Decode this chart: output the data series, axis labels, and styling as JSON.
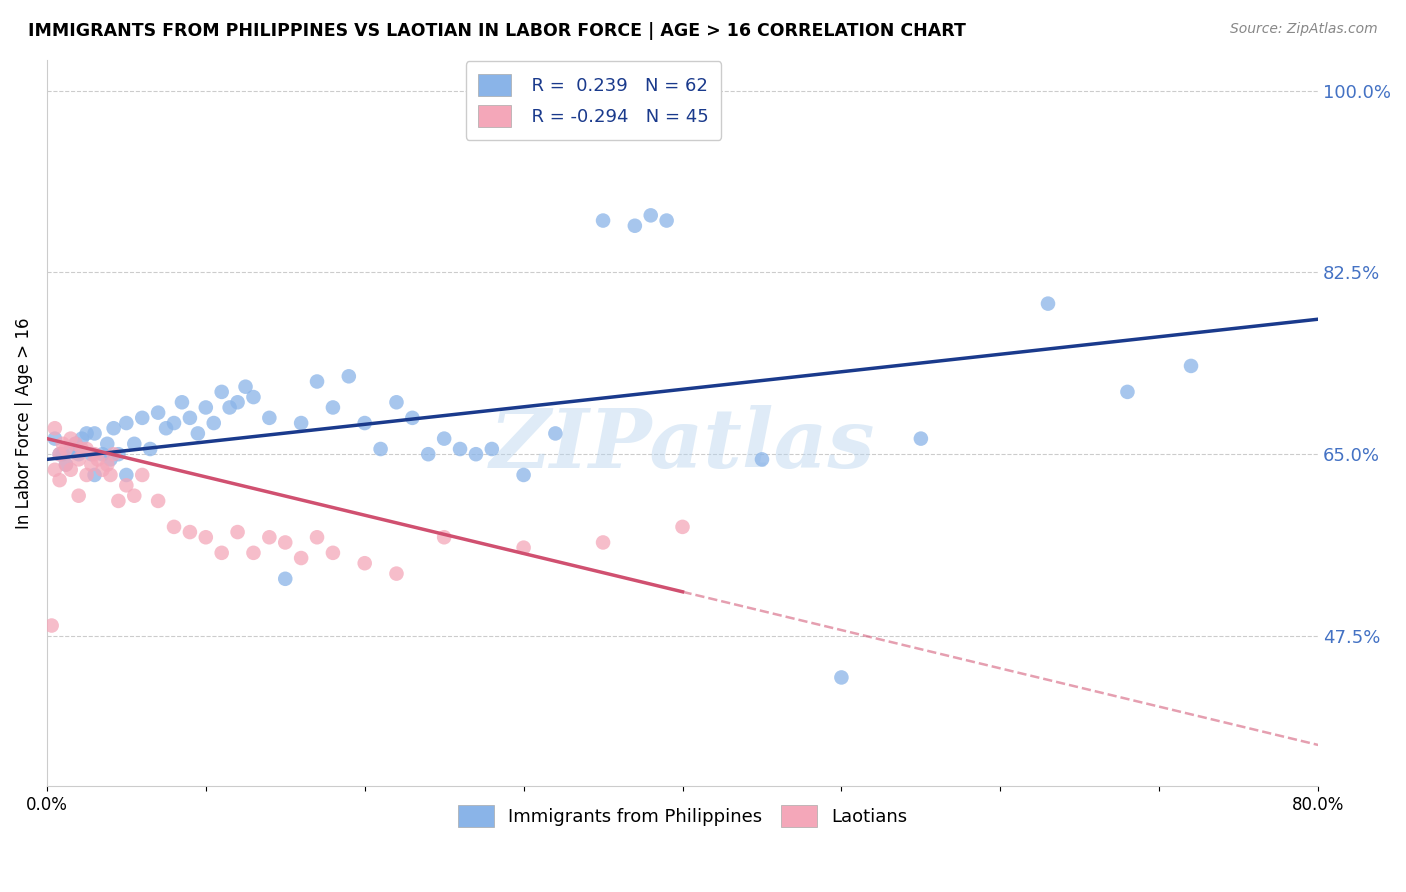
{
  "title": "IMMIGRANTS FROM PHILIPPINES VS LAOTIAN IN LABOR FORCE | AGE > 16 CORRELATION CHART",
  "source": "Source: ZipAtlas.com",
  "ylabel": "In Labor Force | Age > 16",
  "yticks": [
    100.0,
    82.5,
    65.0,
    47.5
  ],
  "ytick_labels": [
    "100.0%",
    "82.5%",
    "65.0%",
    "47.5%"
  ],
  "xlim": [
    0.0,
    80.0
  ],
  "ylim": [
    33.0,
    103.0
  ],
  "legend_blue_r": "R =  0.239",
  "legend_blue_n": "N = 62",
  "legend_pink_r": "R = -0.294",
  "legend_pink_n": "N = 45",
  "legend_label_blue": "Immigrants from Philippines",
  "legend_label_pink": "Laotians",
  "blue_color": "#8ab4e8",
  "pink_color": "#f4a7b9",
  "blue_line_color": "#1a3a8c",
  "pink_line_color": "#e07090",
  "pink_line_solid_color": "#d05070",
  "watermark": "ZIPatlas",
  "blue_line_start_y": 64.5,
  "blue_line_end_y": 78.0,
  "pink_line_start_y": 66.5,
  "pink_line_end_y": 37.0,
  "pink_solid_end_x": 40.0,
  "blue_scatter_x": [
    0.5,
    0.8,
    1.0,
    1.2,
    1.5,
    1.8,
    2.0,
    2.2,
    2.5,
    2.8,
    3.0,
    3.0,
    3.5,
    3.8,
    4.0,
    4.2,
    4.5,
    5.0,
    5.0,
    5.5,
    6.0,
    6.5,
    7.0,
    7.5,
    8.0,
    8.5,
    9.0,
    9.5,
    10.0,
    10.5,
    11.0,
    11.5,
    12.0,
    12.5,
    13.0,
    14.0,
    15.0,
    16.0,
    17.0,
    18.0,
    19.0,
    20.0,
    21.0,
    22.0,
    23.0,
    24.0,
    25.0,
    26.0,
    27.0,
    28.0,
    30.0,
    32.0,
    35.0,
    37.0,
    38.0,
    39.0,
    45.0,
    50.0,
    55.0,
    63.0,
    68.0,
    72.0
  ],
  "blue_scatter_y": [
    66.5,
    65.0,
    65.0,
    64.0,
    65.5,
    66.0,
    65.0,
    66.5,
    67.0,
    65.0,
    63.0,
    67.0,
    65.0,
    66.0,
    64.5,
    67.5,
    65.0,
    63.0,
    68.0,
    66.0,
    68.5,
    65.5,
    69.0,
    67.5,
    68.0,
    70.0,
    68.5,
    67.0,
    69.5,
    68.0,
    71.0,
    69.5,
    70.0,
    71.5,
    70.5,
    68.5,
    53.0,
    68.0,
    72.0,
    69.5,
    72.5,
    68.0,
    65.5,
    70.0,
    68.5,
    65.0,
    66.5,
    65.5,
    65.0,
    65.5,
    63.0,
    67.0,
    87.5,
    87.0,
    88.0,
    87.5,
    64.5,
    43.5,
    66.5,
    79.5,
    71.0,
    73.5
  ],
  "pink_scatter_x": [
    0.3,
    0.5,
    0.5,
    0.8,
    0.8,
    1.0,
    1.2,
    1.2,
    1.5,
    1.5,
    1.8,
    2.0,
    2.0,
    2.2,
    2.5,
    2.5,
    2.8,
    3.0,
    3.2,
    3.5,
    3.8,
    4.0,
    4.2,
    4.5,
    5.0,
    5.5,
    6.0,
    7.0,
    8.0,
    9.0,
    10.0,
    11.0,
    12.0,
    13.0,
    14.0,
    15.0,
    16.0,
    17.0,
    18.0,
    20.0,
    22.0,
    25.0,
    30.0,
    35.0,
    40.0
  ],
  "pink_scatter_y": [
    48.5,
    67.5,
    63.5,
    65.0,
    62.5,
    66.0,
    65.5,
    64.0,
    66.5,
    63.5,
    66.0,
    64.5,
    61.0,
    65.5,
    63.0,
    65.5,
    64.0,
    65.0,
    64.5,
    63.5,
    64.0,
    63.0,
    65.0,
    60.5,
    62.0,
    61.0,
    63.0,
    60.5,
    58.0,
    57.5,
    57.0,
    55.5,
    57.5,
    55.5,
    57.0,
    56.5,
    55.0,
    57.0,
    55.5,
    54.5,
    53.5,
    57.0,
    56.0,
    56.5,
    58.0
  ]
}
